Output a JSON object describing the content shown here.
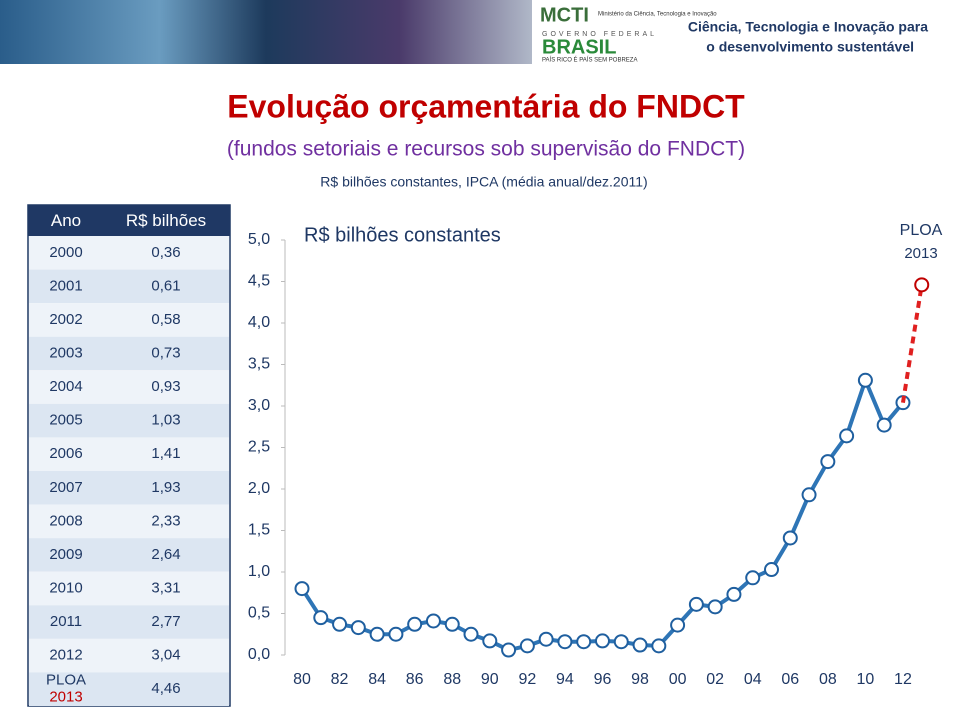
{
  "header": {
    "ministry": "MCTI",
    "ministry_full": "Ministério da Ciência, Tecnologia e Inovação",
    "government": "GOVERNO FEDERAL",
    "country": "BRASIL",
    "slogan": "PAÍS RICO É PAÍS SEM POBREZA",
    "tagline": [
      "Ciência, Tecnologia e Inovação para",
      "o desenvolvimento sustentável"
    ]
  },
  "title": "Evolução orçamentária do FNDCT",
  "subtitle": "(fundos setoriais e recursos sob supervisão do FNDCT)",
  "note": "R$ bilhões constantes, IPCA (média anual/dez.2011)",
  "table": {
    "header": [
      "Ano",
      "R$ bilhões"
    ],
    "rows": [
      [
        "2000",
        "0,36"
      ],
      [
        "2001",
        "0,61"
      ],
      [
        "2002",
        "0,58"
      ],
      [
        "2003",
        "0,73"
      ],
      [
        "2004",
        "0,93"
      ],
      [
        "2005",
        "1,03"
      ],
      [
        "2006",
        "1,41"
      ],
      [
        "2007",
        "1,93"
      ],
      [
        "2008",
        "2,33"
      ],
      [
        "2009",
        "2,64"
      ],
      [
        "2010",
        "3,31"
      ],
      [
        "2011",
        "2,77"
      ],
      [
        "2012",
        "3,04"
      ],
      [
        [
          "PLOA",
          "2013"
        ],
        "4,46"
      ]
    ]
  },
  "chart_data": {
    "type": "line",
    "y_label": "R$ bilhões constantes",
    "annotation": [
      "PLOA",
      "2013"
    ],
    "categories": [
      "80",
      null,
      "82",
      null,
      "84",
      null,
      "86",
      null,
      "88",
      null,
      "90",
      null,
      "92",
      null,
      "94",
      null,
      "96",
      null,
      "98",
      null,
      "00",
      null,
      "02",
      null,
      "04",
      null,
      "06",
      null,
      "08",
      null,
      "10",
      null,
      "12",
      null
    ],
    "series": [
      {
        "color": "#2e75b6",
        "values": [
          0.8,
          0.45,
          0.37,
          0.33,
          0.25,
          0.25,
          0.37,
          0.41,
          0.37,
          0.25,
          0.17,
          0.06,
          0.11,
          0.19,
          0.16,
          0.16,
          0.17,
          0.16,
          0.12,
          0.11,
          0.36,
          0.61,
          0.58,
          0.73,
          0.93,
          1.03,
          1.41,
          1.93,
          2.33,
          2.64,
          3.31,
          2.77,
          3.04,
          null
        ]
      },
      {
        "color": "#e02020",
        "dashed": true,
        "values": [
          null,
          null,
          null,
          null,
          null,
          null,
          null,
          null,
          null,
          null,
          null,
          null,
          null,
          null,
          null,
          null,
          null,
          null,
          null,
          null,
          null,
          null,
          null,
          null,
          null,
          null,
          null,
          null,
          null,
          null,
          null,
          null,
          null,
          4.46
        ]
      }
    ],
    "ylim": [
      0,
      5
    ],
    "yticks": [
      {
        "value": 0,
        "label": "0,0"
      },
      {
        "value": 0.5,
        "label": "0,5"
      },
      {
        "value": 1,
        "label": "1,0"
      },
      {
        "value": 1.5,
        "label": "1,5"
      },
      {
        "value": 2,
        "label": "2,0"
      },
      {
        "value": 2.5,
        "label": "2,5"
      },
      {
        "value": 3,
        "label": "3,0"
      },
      {
        "value": 3.5,
        "label": "3,5"
      },
      {
        "value": 4,
        "label": "4,0"
      },
      {
        "value": 4.5,
        "label": "4,5"
      },
      {
        "value": 5,
        "label": "5,0"
      }
    ],
    "grid": false
  }
}
